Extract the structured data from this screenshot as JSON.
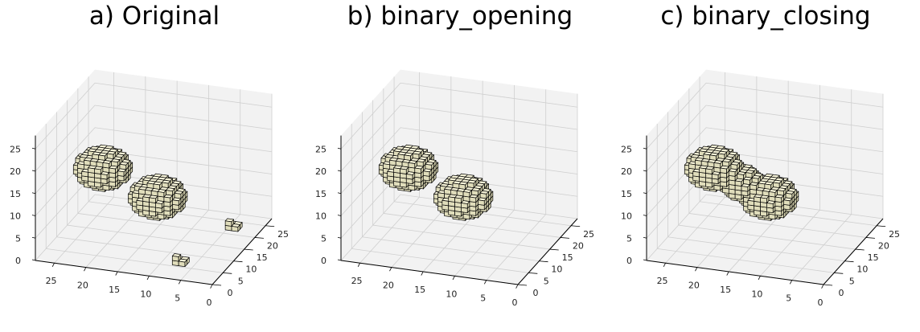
{
  "chart_data": [
    {
      "type": "voxel-3d",
      "title": "a) Original",
      "xlim": [
        0,
        28
      ],
      "ylim": [
        0,
        28
      ],
      "zlim": [
        0,
        28
      ],
      "x_ticks": [
        "0",
        "5",
        "10",
        "15",
        "20",
        "25"
      ],
      "y_ticks": [
        "0",
        "5",
        "10",
        "15",
        "20",
        "25"
      ],
      "z_ticks": [
        "0",
        "5",
        "10",
        "15",
        "20",
        "25"
      ],
      "grid": true,
      "voxel_color": "#ece9c8",
      "voxel_edge_color": "#000000",
      "objects": [
        {
          "shape": "sphere",
          "center": [
            8,
            20,
            18
          ],
          "radius": 4
        },
        {
          "shape": "sphere",
          "center": [
            10,
            12,
            12
          ],
          "radius": 4
        },
        {
          "shape": "speck",
          "center": [
            18,
            3,
            2
          ],
          "size": 1
        },
        {
          "shape": "speck",
          "center": [
            2,
            6,
            2
          ],
          "size": 1
        }
      ]
    },
    {
      "type": "voxel-3d",
      "title": "b) binary_opening",
      "xlim": [
        0,
        28
      ],
      "ylim": [
        0,
        28
      ],
      "zlim": [
        0,
        28
      ],
      "x_ticks": [
        "0",
        "5",
        "10",
        "15",
        "20",
        "25"
      ],
      "y_ticks": [
        "0",
        "5",
        "10",
        "15",
        "20",
        "25"
      ],
      "z_ticks": [
        "0",
        "5",
        "10",
        "15",
        "20",
        "25"
      ],
      "grid": true,
      "voxel_color": "#ece9c8",
      "voxel_edge_color": "#000000",
      "objects": [
        {
          "shape": "sphere",
          "center": [
            8,
            20,
            18
          ],
          "radius": 4
        },
        {
          "shape": "sphere",
          "center": [
            10,
            12,
            12
          ],
          "radius": 4
        }
      ]
    },
    {
      "type": "voxel-3d",
      "title": "c) binary_closing",
      "xlim": [
        0,
        28
      ],
      "ylim": [
        0,
        28
      ],
      "zlim": [
        0,
        28
      ],
      "x_ticks": [
        "0",
        "5",
        "10",
        "15",
        "20",
        "25"
      ],
      "y_ticks": [
        "0",
        "5",
        "10",
        "15",
        "20",
        "25"
      ],
      "z_ticks": [
        "0",
        "5",
        "10",
        "15",
        "20",
        "25"
      ],
      "grid": true,
      "voxel_color": "#ece9c8",
      "voxel_edge_color": "#000000",
      "objects": [
        {
          "shape": "sphere",
          "center": [
            8,
            20,
            18
          ],
          "radius": 4
        },
        {
          "shape": "bridge",
          "center": [
            9,
            16,
            15
          ],
          "radius": 3
        },
        {
          "shape": "sphere",
          "center": [
            10,
            12,
            12
          ],
          "radius": 4
        }
      ]
    }
  ]
}
